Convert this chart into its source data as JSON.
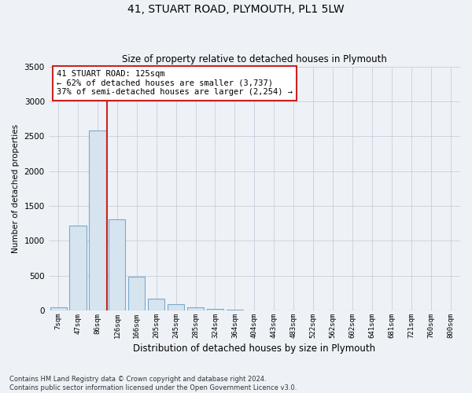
{
  "title": "41, STUART ROAD, PLYMOUTH, PL1 5LW",
  "subtitle": "Size of property relative to detached houses in Plymouth",
  "xlabel": "Distribution of detached houses by size in Plymouth",
  "ylabel": "Number of detached properties",
  "bar_color": "#d6e4f0",
  "bar_edge_color": "#7aaaca",
  "vline_color": "#cc2222",
  "annotation_text": "41 STUART ROAD: 125sqm\n← 62% of detached houses are smaller (3,737)\n37% of semi-detached houses are larger (2,254) →",
  "annotation_box_color": "#ffffff",
  "annotation_box_edge_color": "#cc2222",
  "categories": [
    "7sqm",
    "47sqm",
    "86sqm",
    "126sqm",
    "166sqm",
    "205sqm",
    "245sqm",
    "285sqm",
    "324sqm",
    "364sqm",
    "404sqm",
    "443sqm",
    "483sqm",
    "522sqm",
    "562sqm",
    "602sqm",
    "641sqm",
    "681sqm",
    "721sqm",
    "760sqm",
    "800sqm"
  ],
  "values": [
    50,
    1220,
    2580,
    1310,
    490,
    175,
    95,
    45,
    25,
    8,
    4,
    2,
    2,
    0,
    0,
    0,
    0,
    0,
    0,
    0,
    0
  ],
  "ylim": [
    0,
    3500
  ],
  "yticks": [
    0,
    500,
    1000,
    1500,
    2000,
    2500,
    3000,
    3500
  ],
  "footnote": "Contains HM Land Registry data © Crown copyright and database right 2024.\nContains public sector information licensed under the Open Government Licence v3.0.",
  "background_color": "#eef2f7",
  "plot_bg_color": "#eef2f7",
  "grid_color": "#c5d0dc"
}
